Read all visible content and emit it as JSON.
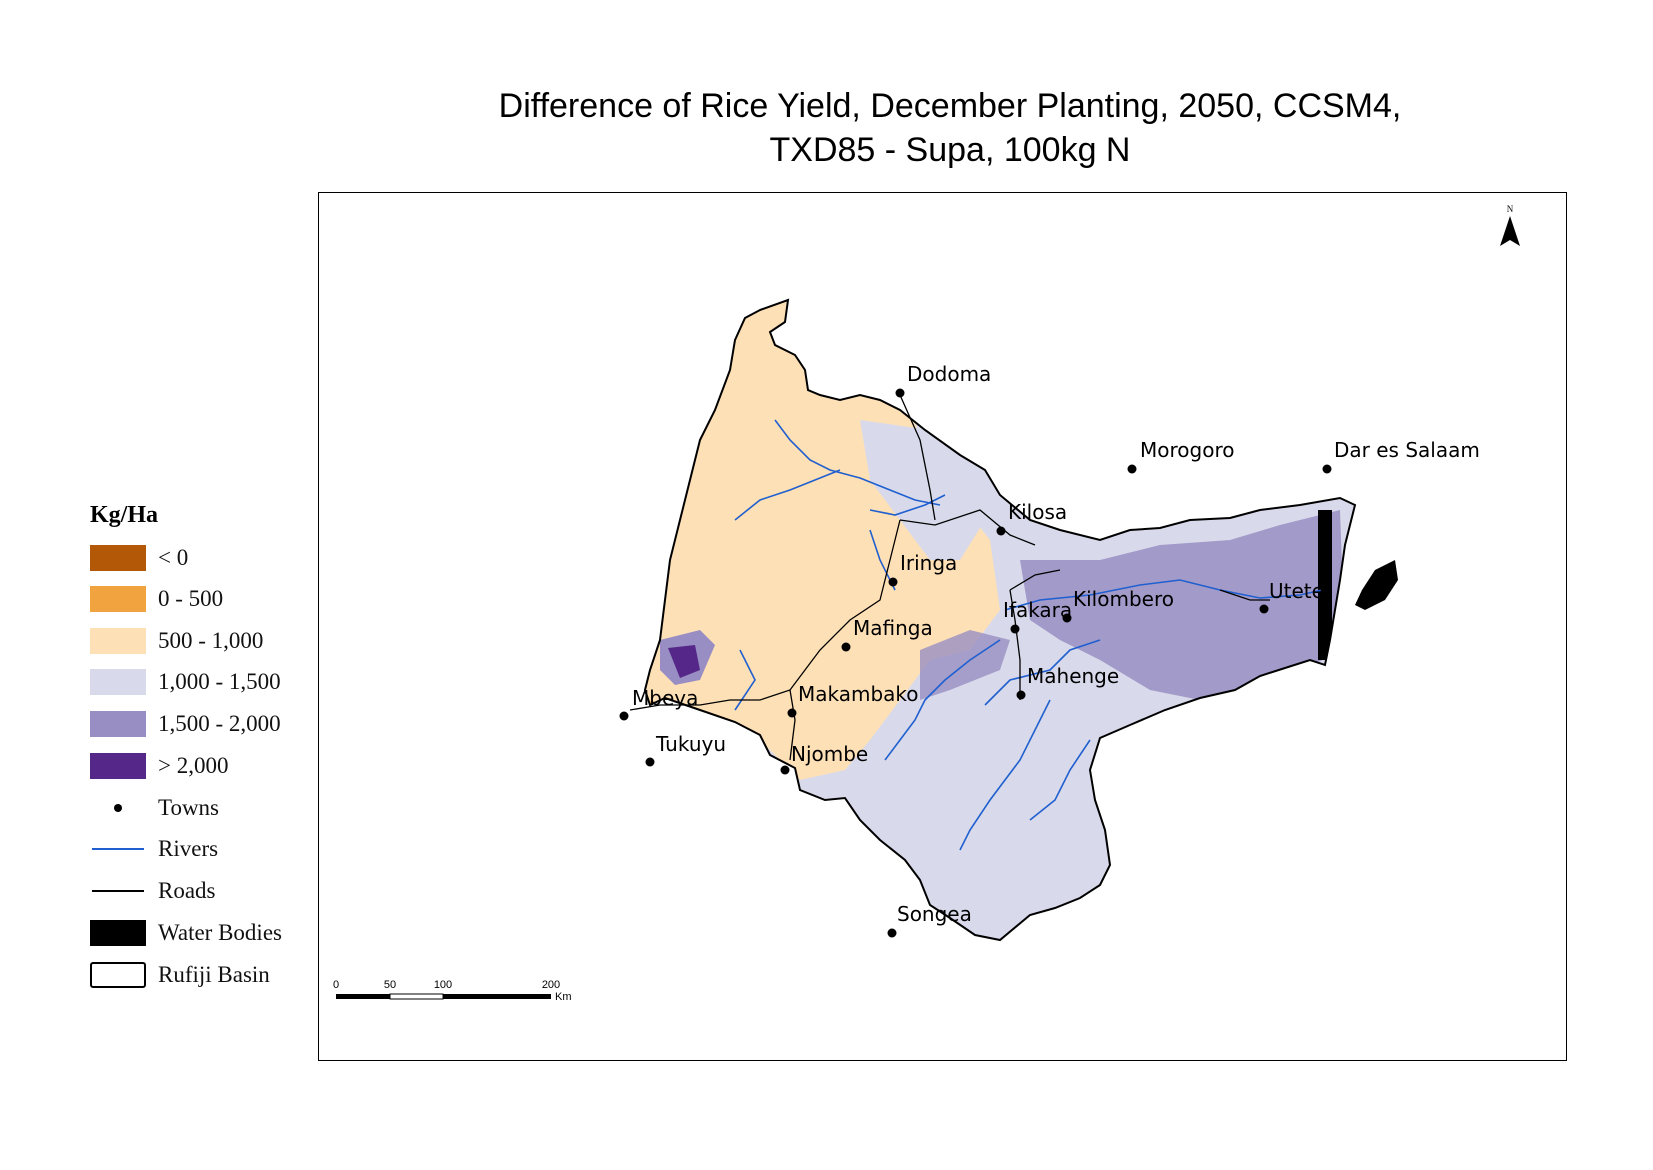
{
  "title_line1": "Difference of Rice Yield, December Planting, 2050, CCSM4,",
  "title_line2": "TXD85 - Supa, 100kg N",
  "legend": {
    "title": "Kg/Ha",
    "classes": [
      {
        "label": "< 0",
        "color": "#b35806"
      },
      {
        "label": "0 - 500",
        "color": "#f1a340"
      },
      {
        "label": "500 - 1,000",
        "color": "#fee0b6"
      },
      {
        "label": "1,000 - 1,500",
        "color": "#d8daeb"
      },
      {
        "label": "1,500 - 2,000",
        "color": "#998ec3"
      },
      {
        "label": "> 2,000",
        "color": "#542788"
      }
    ],
    "towns_label": "Towns",
    "rivers_label": "Rivers",
    "roads_label": "Roads",
    "water_label": "Water Bodies",
    "basin_label": "Rufiji Basin"
  },
  "colors": {
    "river": "#1f5fcf",
    "road": "#000000",
    "water": "#000000"
  },
  "towns": [
    {
      "name": "Dodoma"
    },
    {
      "name": "Morogoro"
    },
    {
      "name": "Dar es Salaam"
    },
    {
      "name": "Kilosa"
    },
    {
      "name": "Iringa"
    },
    {
      "name": "Ifakara"
    },
    {
      "name": "Kilombero"
    },
    {
      "name": "Utete"
    },
    {
      "name": "Mafinga"
    },
    {
      "name": "Mahenge"
    },
    {
      "name": "Makambako"
    },
    {
      "name": "Mbeya"
    },
    {
      "name": "Tukuyu"
    },
    {
      "name": "Njombe"
    },
    {
      "name": "Songea"
    }
  ],
  "scale_bar": {
    "ticks": [
      "0",
      "50",
      "100",
      "200"
    ],
    "unit": "Km"
  },
  "north_arrow": {
    "label": "N",
    "icon": "north-arrow-icon"
  }
}
